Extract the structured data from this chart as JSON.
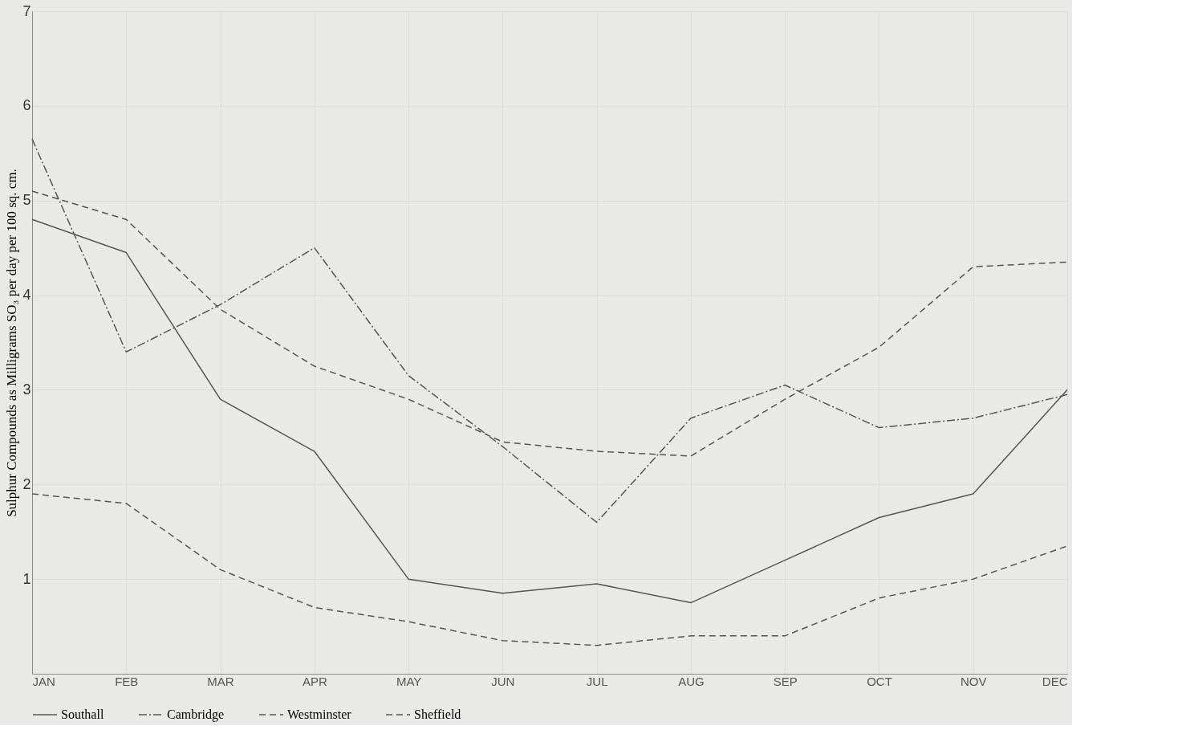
{
  "chart_data": {
    "type": "line",
    "ylabel": "Sulphur Compounds as Milligrams SO₃ per day per 100 sq. cm.",
    "categories": [
      "JAN",
      "FEB",
      "MAR",
      "APR",
      "MAY",
      "JUN",
      "JUL",
      "AUG",
      "SEP",
      "OCT",
      "NOV",
      "DEC"
    ],
    "series": [
      {
        "name": "Southall",
        "color": "#555555",
        "line_style": "solid",
        "values": [
          4.8,
          4.45,
          2.9,
          2.35,
          1.0,
          0.85,
          0.95,
          0.75,
          1.2,
          1.65,
          1.9,
          3.0
        ]
      },
      {
        "name": "Cambridge",
        "color": "#555555",
        "line_style": "dotted",
        "values": [
          5.65,
          3.4,
          3.9,
          4.5,
          3.15,
          2.4,
          1.6,
          2.7,
          3.05,
          2.6,
          2.7,
          2.95
        ]
      },
      {
        "name": "Westminster",
        "color": "#555555",
        "line_style": "dashed",
        "values": [
          1.9,
          1.8,
          1.1,
          0.7,
          0.55,
          0.35,
          0.3,
          0.4,
          0.4,
          0.8,
          1.0,
          1.35
        ]
      },
      {
        "name": "Sheffield",
        "color": "#555555",
        "line_style": "dashed",
        "values": [
          5.1,
          4.8,
          3.85,
          3.25,
          2.9,
          2.45,
          2.35,
          2.3,
          2.9,
          3.45,
          4.3,
          4.35
        ]
      }
    ],
    "ylim": [
      0,
      7
    ],
    "yticks": [
      1,
      2,
      3,
      4,
      5,
      6,
      7
    ],
    "grid": true,
    "legend": "bottom",
    "marker": "none"
  }
}
